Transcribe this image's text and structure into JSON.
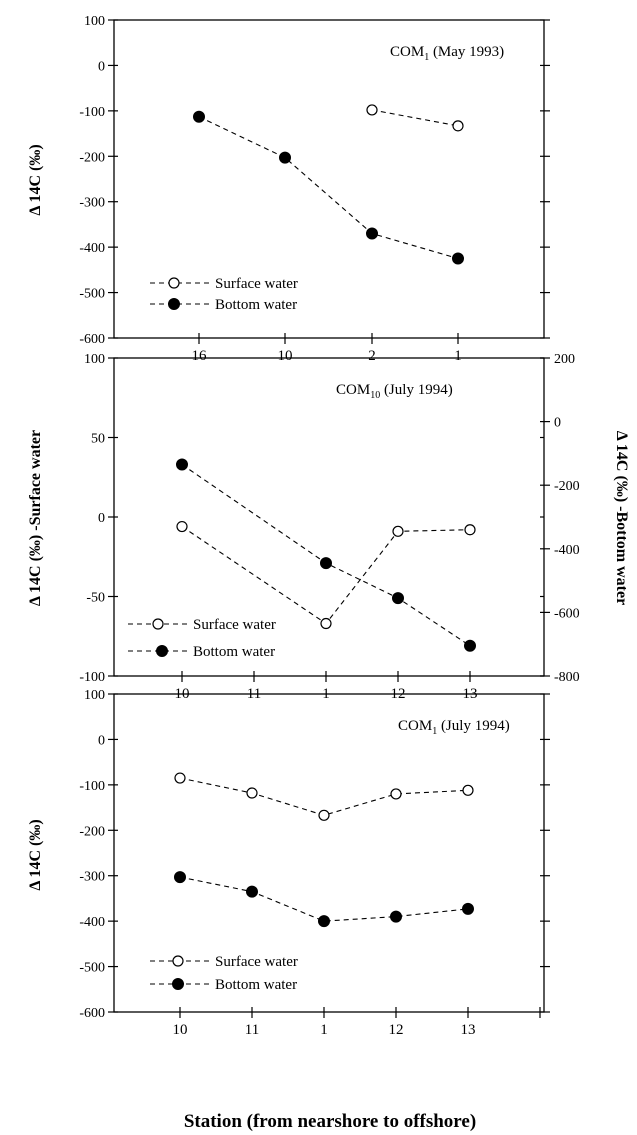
{
  "figure": {
    "xlabel": "Station (from nearshore to offshore)"
  },
  "chart_data": [
    {
      "type": "line",
      "title_main": "COM",
      "title_sub": "1",
      "title_rest": " (May 1993)",
      "categories": [
        "16",
        "10",
        "2",
        "1"
      ],
      "ylabel": "Δ 14C (‰)",
      "ylim": [
        -600,
        100
      ],
      "yticks": [
        100,
        0,
        -100,
        -200,
        -300,
        -400,
        -500,
        -600
      ],
      "legend": [
        "Surface water",
        "Bottom water"
      ],
      "legend_position": "lower-left",
      "series": [
        {
          "name": "Surface water",
          "marker": "open-circle",
          "axis": "left",
          "values": [
            null,
            null,
            -98,
            -133
          ]
        },
        {
          "name": "Bottom water",
          "marker": "filled-circle",
          "axis": "left",
          "values": [
            -113,
            -203,
            -370,
            -425
          ]
        }
      ]
    },
    {
      "type": "line",
      "title_main": "COM",
      "title_sub": "10",
      "title_rest": " (July 1994)",
      "categories": [
        "10",
        "11",
        "1",
        "12",
        "13"
      ],
      "ylabel": "Δ 14C (‰) -Surface water",
      "ylim": [
        -100,
        100
      ],
      "yticks": [
        100,
        50,
        0,
        -50,
        -100
      ],
      "ylabel_right": "Δ 14C (‰) -Bottom water",
      "ylim_right": [
        -800,
        200
      ],
      "yticks_right": [
        200,
        0,
        -200,
        -400,
        -600,
        -800
      ],
      "legend": [
        "Surface water",
        "Bottom water"
      ],
      "legend_position": "lower-left",
      "series": [
        {
          "name": "Surface water",
          "marker": "open-circle",
          "axis": "left",
          "values": [
            -6,
            null,
            -67,
            -9,
            -8
          ]
        },
        {
          "name": "Bottom water",
          "marker": "filled-circle",
          "axis": "right",
          "values": [
            -135,
            null,
            -445,
            -555,
            -705
          ]
        }
      ]
    },
    {
      "type": "line",
      "title_main": "COM",
      "title_sub": "1",
      "title_rest": " (July 1994)",
      "categories": [
        "10",
        "11",
        "1",
        "12",
        "13"
      ],
      "ylabel": "Δ 14C (‰)",
      "ylim": [
        -600,
        100
      ],
      "yticks": [
        100,
        0,
        -100,
        -200,
        -300,
        -400,
        -500,
        -600
      ],
      "legend": [
        "Surface water",
        "Bottom water"
      ],
      "legend_position": "lower-left",
      "series": [
        {
          "name": "Surface water",
          "marker": "open-circle",
          "axis": "left",
          "values": [
            -85,
            -118,
            -167,
            -120,
            -112
          ]
        },
        {
          "name": "Bottom water",
          "marker": "filled-circle",
          "axis": "left",
          "values": [
            -303,
            -335,
            -400,
            -390,
            -373
          ]
        }
      ]
    }
  ]
}
